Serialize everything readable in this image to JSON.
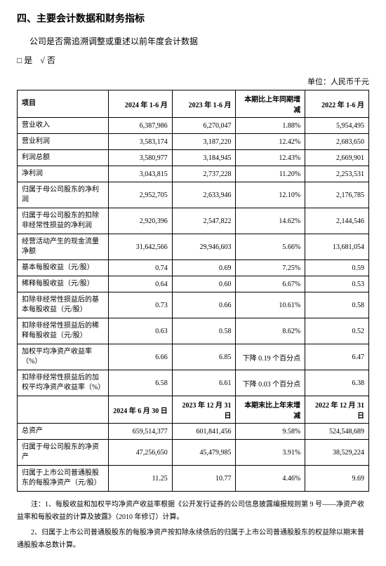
{
  "section_title": "四、主要会计数据和财务指标",
  "subtitle": "公司是否需追溯调整或重述以前年度会计数据",
  "checkbox_yes": "□ 是",
  "checkbox_no": "√ 否",
  "unit_label": "单位：人民币千元",
  "headers1": {
    "item": "项目",
    "c1": "2024 年 1-6 月",
    "c2": "2023 年 1-6 月",
    "c3": "本期比上年同期增减",
    "c4": "2022 年 1-6 月"
  },
  "rows1": [
    {
      "label": "营业收入",
      "v1": "6,387,986",
      "v2": "6,270,047",
      "chg": "1.88%",
      "v4": "5,954,495"
    },
    {
      "label": "营业利润",
      "v1": "3,583,174",
      "v2": "3,187,220",
      "chg": "12.42%",
      "v4": "2,683,650"
    },
    {
      "label": "利润总额",
      "v1": "3,580,977",
      "v2": "3,184,945",
      "chg": "12.43%",
      "v4": "2,669,901"
    },
    {
      "label": "净利润",
      "v1": "3,043,815",
      "v2": "2,737,228",
      "chg": "11.20%",
      "v4": "2,253,531"
    },
    {
      "label": "归属于母公司股东的净利润",
      "v1": "2,952,705",
      "v2": "2,633,946",
      "chg": "12.10%",
      "v4": "2,176,785"
    },
    {
      "label": "归属于母公司股东的扣除非经常性损益的净利润",
      "v1": "2,920,396",
      "v2": "2,547,822",
      "chg": "14.62%",
      "v4": "2,144,546"
    },
    {
      "label": "经营活动产生的现金流量净额",
      "v1": "31,642,566",
      "v2": "29,946,603",
      "chg": "5.66%",
      "v4": "13,681,054"
    },
    {
      "label": "基本每股收益（元/股）",
      "v1": "0.74",
      "v2": "0.69",
      "chg": "7.25%",
      "v4": "0.59"
    },
    {
      "label": "稀释每股收益（元/股）",
      "v1": "0.64",
      "v2": "0.60",
      "chg": "6.67%",
      "v4": "0.53"
    },
    {
      "label": "扣除非经常性损益后的基本每股收益（元/股）",
      "v1": "0.73",
      "v2": "0.66",
      "chg": "10.61%",
      "v4": "0.58"
    },
    {
      "label": "扣除非经常性损益后的稀释每股收益（元/股）",
      "v1": "0.63",
      "v2": "0.58",
      "chg": "8.62%",
      "v4": "0.52"
    },
    {
      "label": "加权平均净资产收益率（%）",
      "v1": "6.66",
      "v2": "6.85",
      "chg": "下降 0.19 个百分点",
      "v4": "6.47"
    },
    {
      "label": "扣除非经常性损益后的加权平均净资产收益率（%）",
      "v1": "6.58",
      "v2": "6.61",
      "chg": "下降 0.03 个百分点",
      "v4": "6.38"
    }
  ],
  "headers2": {
    "item": "",
    "c1": "2024 年 6 月 30 日",
    "c2": "2023 年 12 月 31 日",
    "c3": "本期末比上年末增减",
    "c4": "2022 年 12 月 31 日"
  },
  "rows2": [
    {
      "label": "总资产",
      "v1": "659,514,377",
      "v2": "601,841,456",
      "chg": "9.58%",
      "v4": "524,548,689"
    },
    {
      "label": "归属于母公司股东的净资产",
      "v1": "47,256,650",
      "v2": "45,479,985",
      "chg": "3.91%",
      "v4": "38,529,224"
    },
    {
      "label": "归属于上市公司普通股股东的每股净资产（元/股）",
      "v1": "11.25",
      "v2": "10.77",
      "chg": "4.46%",
      "v4": "9.69"
    }
  ],
  "note1": "注：1、每股收益和加权平均净资产收益率根据《公开发行证券的公司信息披露编报规则第 9 号——净资产收益率和每股收益的计算及披露》（2010 年修订）计算。",
  "note2": "2、归属于上市公司普通股股东的每股净资产按扣除永续债后的归属于上市公司普通股股东的权益除以期末普通股股本总数计算。"
}
